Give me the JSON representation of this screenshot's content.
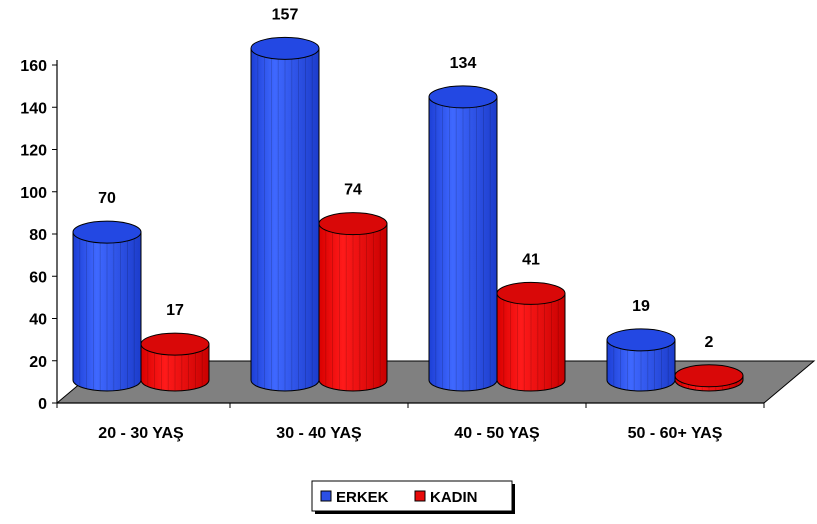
{
  "chart_data": {
    "type": "bar",
    "title": "",
    "xlabel": "",
    "ylabel": "",
    "categories": [
      "20 - 30 YAŞ",
      "30 - 40 YAŞ",
      "40 - 50 YAŞ",
      "50 - 60+ YAŞ"
    ],
    "series": [
      {
        "name": "ERKEK",
        "values": [
          70,
          157,
          134,
          19
        ],
        "color": "#2B4FE6"
      },
      {
        "name": "KADIN",
        "values": [
          17,
          74,
          41,
          2
        ],
        "color": "#E80A0A"
      }
    ],
    "ylim": [
      0,
      160
    ],
    "yticks": [
      0,
      20,
      40,
      60,
      80,
      100,
      120,
      140,
      160
    ],
    "floor_color": "#808080",
    "grid": false,
    "legend_position": "bottom-center",
    "three_d": true
  }
}
